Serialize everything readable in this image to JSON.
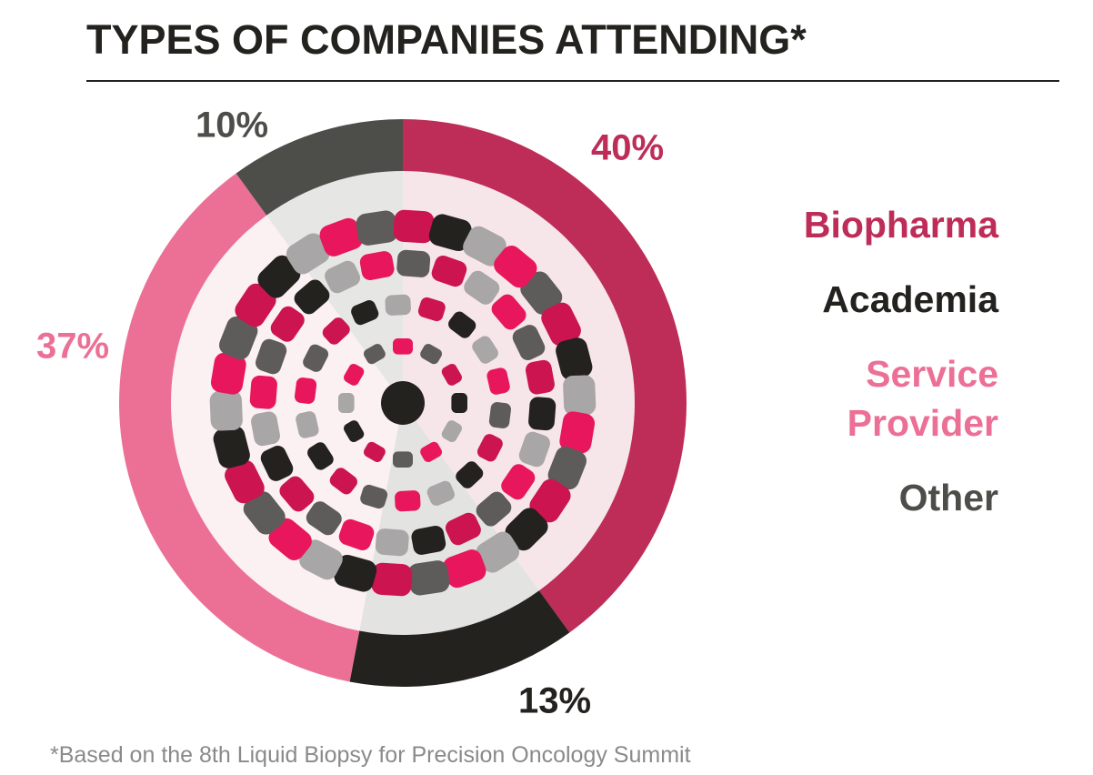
{
  "chart_data": {
    "type": "pie",
    "donut": true,
    "title": "TYPES OF COMPANIES ATTENDING*",
    "footnote": "*Based on the 8th Liquid Biopsy for Precision Oncology Summit",
    "categories": [
      "Biopharma",
      "Academia",
      "Service Provider",
      "Other"
    ],
    "values": [
      40,
      13,
      37,
      10
    ],
    "value_labels": [
      "40%",
      "13%",
      "37%",
      "10%"
    ],
    "colors": [
      "#be2d58",
      "#24221f",
      "#ec7096",
      "#4d4d4a"
    ]
  }
}
